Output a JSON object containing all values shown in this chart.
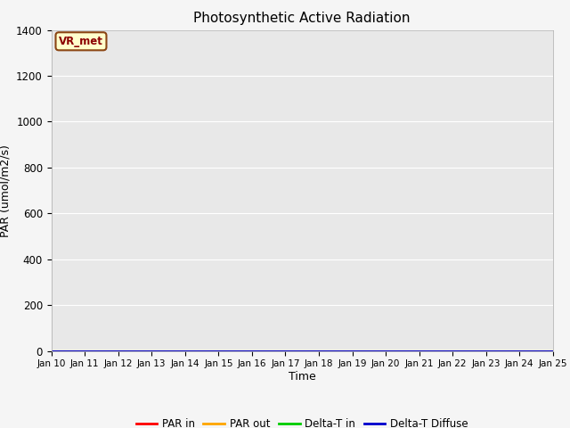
{
  "title": "Photosynthetic Active Radiation",
  "ylabel": "PAR (umol/m2/s)",
  "xlabel": "Time",
  "annotation": "VR_met",
  "ylim": [
    0,
    1400
  ],
  "plot_bg_color": "#e8e8e8",
  "fig_bg_color": "#f5f5f5",
  "series_colors": {
    "par_in": "#ff0000",
    "par_out": "#ffa500",
    "delta_t_in": "#00cc00",
    "delta_t_diffuse": "#0000cc"
  },
  "legend_labels": [
    "PAR in",
    "PAR out",
    "Delta-T in",
    "Delta-T Diffuse"
  ],
  "x_tick_labels": [
    "Jan 10",
    "Jan 11",
    "Jan 12",
    "Jan 13",
    "Jan 14",
    "Jan 15",
    "Jan 16",
    "Jan 17",
    "Jan 18",
    "Jan 19",
    "Jan 20",
    "Jan 21",
    "Jan 22",
    "Jan 23",
    "Jan 24",
    "Jan 25"
  ],
  "total_points": 768,
  "pts_per_day": 48
}
